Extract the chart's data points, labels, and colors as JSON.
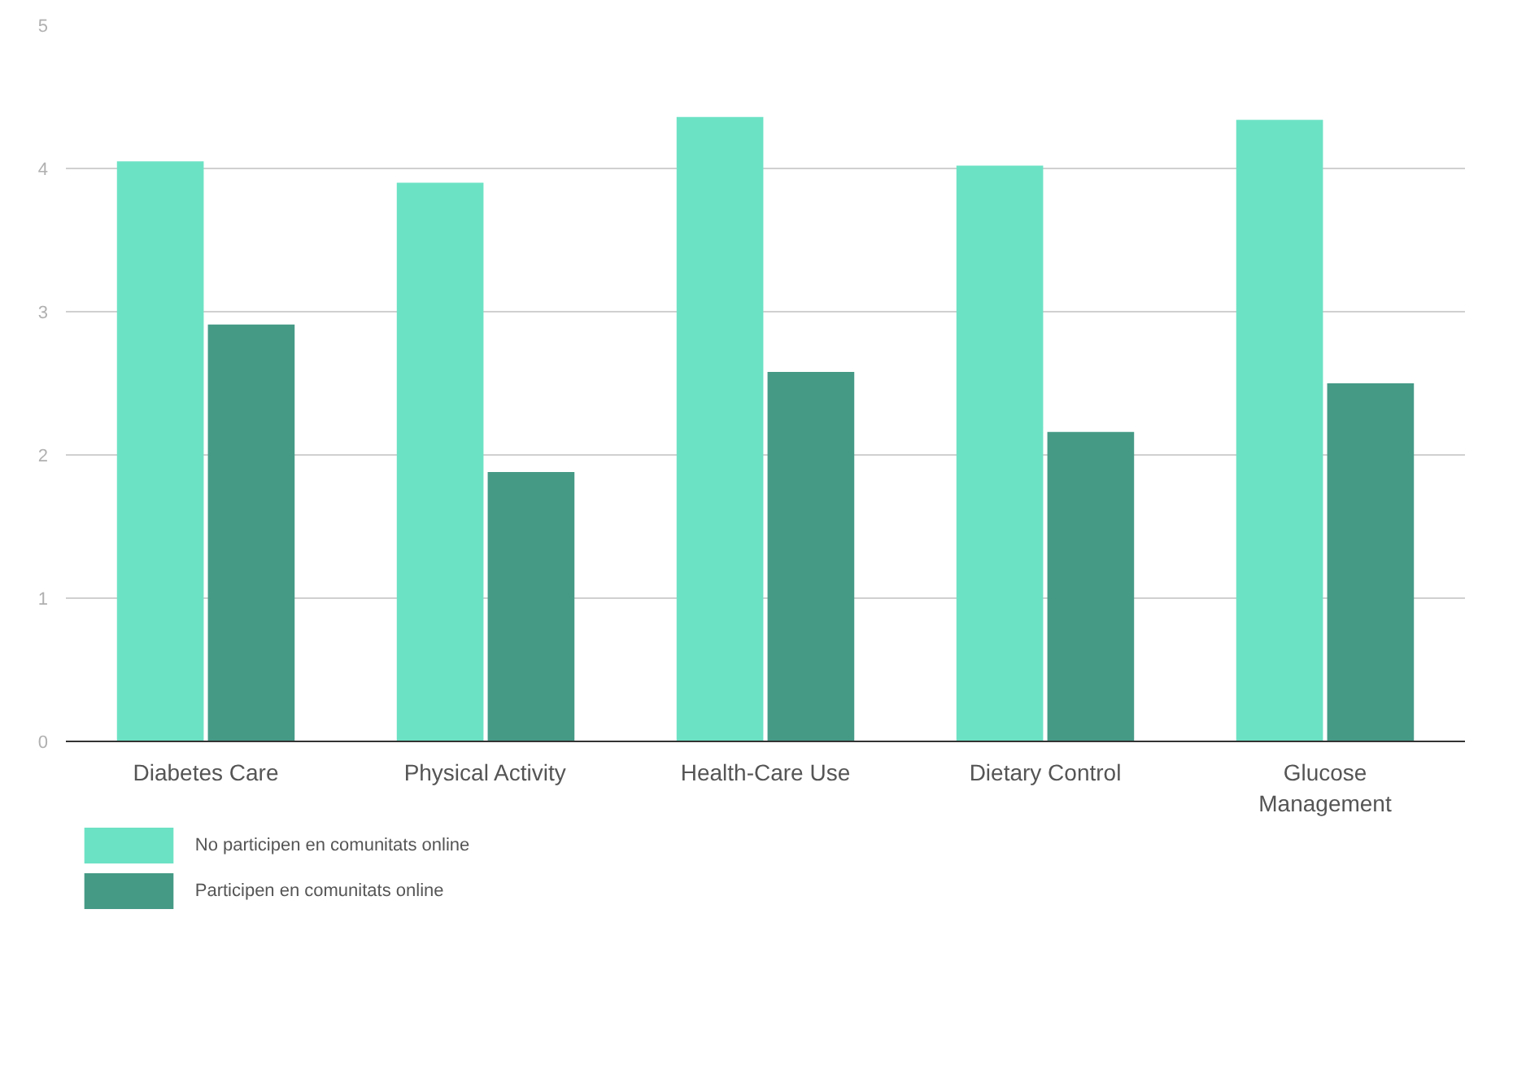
{
  "chart_data": {
    "type": "bar",
    "categories": [
      "Diabetes Care",
      "Physical Activity",
      "Health-Care Use",
      "Dietary Control",
      "Glucose Management"
    ],
    "series": [
      {
        "name": "No participen en comunitats online",
        "color": "#6ce2c4",
        "values": [
          4.05,
          3.9,
          4.36,
          4.02,
          4.34
        ]
      },
      {
        "name": "Participen en comunitats online",
        "color": "#459a86",
        "values": [
          2.91,
          1.88,
          2.58,
          2.16,
          2.5
        ]
      }
    ],
    "ylim": [
      0,
      5
    ],
    "yticks": [
      0,
      1,
      2,
      3,
      4,
      5
    ],
    "grid": "y",
    "legend": "bottom left"
  }
}
